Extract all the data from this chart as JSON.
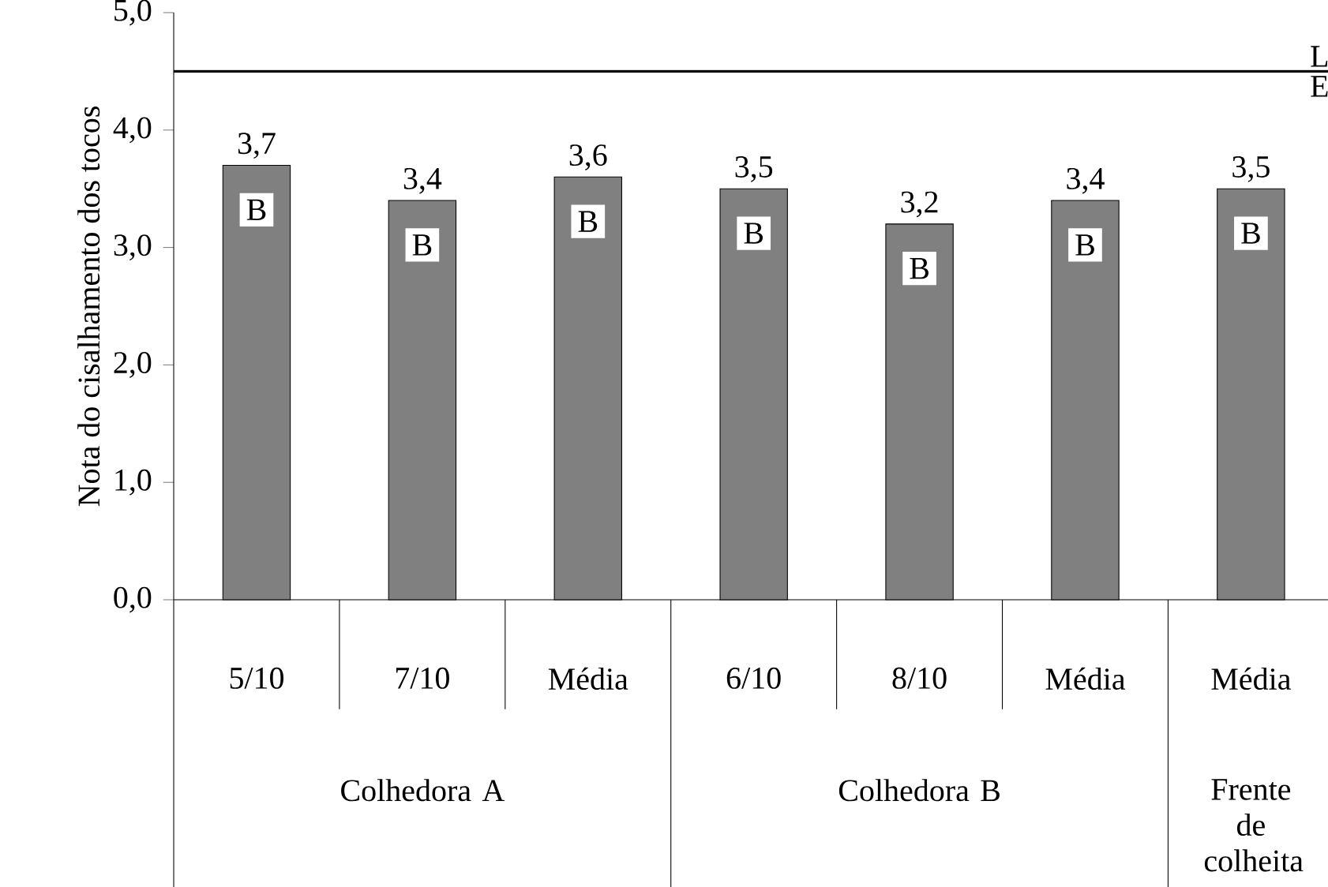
{
  "chart_data": {
    "type": "bar",
    "ylabel": "Nota do cisalhamento dos tocos",
    "categories": [
      "5/10",
      "7/10",
      "Média",
      "6/10",
      "8/10",
      "Média",
      "Média"
    ],
    "values": [
      3.7,
      3.4,
      3.6,
      3.5,
      3.2,
      3.4,
      3.5
    ],
    "value_labels": [
      "3,7",
      "3,4",
      "3,6",
      "3,5",
      "3,2",
      "3,4",
      "3,5"
    ],
    "color": "#808080",
    "ylim": [
      0,
      5
    ],
    "yticks": [
      {
        "value": 0,
        "label": "0,0"
      },
      {
        "value": 1,
        "label": "1,0"
      },
      {
        "value": 2,
        "label": "2,0"
      },
      {
        "value": 3,
        "label": "3,0"
      },
      {
        "value": 4,
        "label": "4,0"
      },
      {
        "value": 5,
        "label": "5,0"
      }
    ],
    "ref_lines": [
      {
        "axis": "y",
        "value": 4.5,
        "color": "#000000"
      }
    ],
    "annotations": [
      {
        "text": "L",
        "y": 4.5
      },
      {
        "text": "E",
        "y": 4.5
      },
      "B",
      "B",
      "B",
      "B",
      "B",
      "B",
      "B",
      "Colhedora A",
      "Colhedora B",
      "Frente de colheita"
    ],
    "grid": false
  }
}
